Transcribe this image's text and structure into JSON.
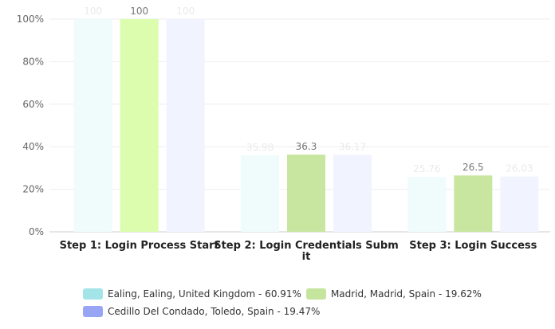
{
  "chart_data": {
    "type": "bar",
    "categories": [
      "Step 1: Login Process Start",
      "Step 2: Login Credentials Submit",
      "Step 3: Login Success"
    ],
    "category_lines": [
      [
        "Step 1: Login Process Start"
      ],
      [
        "Step 2: Login Credentials Subm",
        "it"
      ],
      [
        "Step 3: Login Success"
      ]
    ],
    "series": [
      {
        "name": "Ealing, Ealing, United Kingdom - 60.91%",
        "values": [
          100,
          35.98,
          25.76
        ],
        "color": "#a3e4e8",
        "bar_color": "#f0fbfb",
        "label_color": "#eaeaea"
      },
      {
        "name": "Madrid, Madrid, Spain - 19.62%",
        "values": [
          100,
          36.3,
          26.5
        ],
        "color": "#c5e59e",
        "bar_color": "#c8e6a0",
        "label_color": "#777777"
      },
      {
        "name": "Cedillo Del Condado, Toledo, Spain - 19.47%",
        "values": [
          100,
          36.17,
          26.03
        ],
        "color": "#97a5f4",
        "bar_color": "#f1f4fe",
        "label_color": "#eaeaea"
      }
    ],
    "highlight_first_bar_color": "#dbfdad",
    "yticks": [
      "0%",
      "20%",
      "40%",
      "60%",
      "80%",
      "100%"
    ],
    "ylim": [
      0,
      100
    ],
    "grid": true,
    "legend": "bottom"
  }
}
